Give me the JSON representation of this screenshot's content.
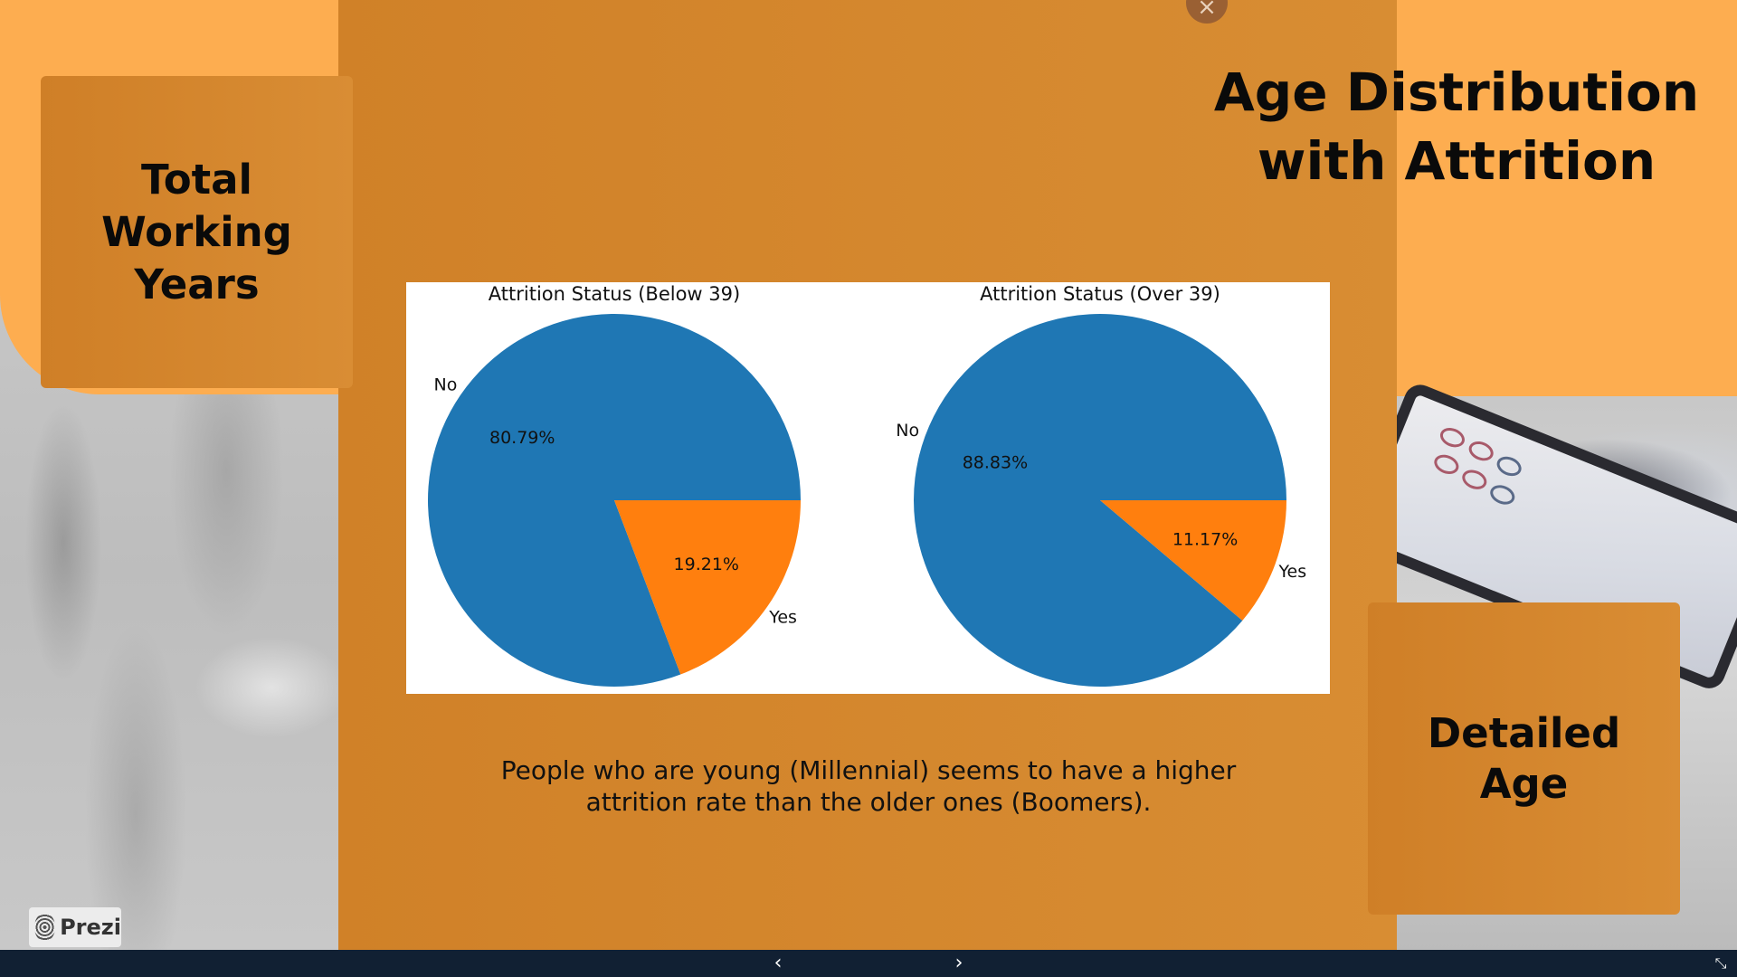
{
  "slide": {
    "title": "Age Distribution with Attrition",
    "left_card": "Total Working Years",
    "right_card": "Detailed Age",
    "caption": "People who are young (Millennial) seems to have a higher attrition rate than the older ones (Boomers)."
  },
  "controls": {
    "close_glyph": "×",
    "prev_glyph": "‹",
    "next_glyph": "›",
    "fullscreen_glyph": "⤡"
  },
  "branding": {
    "logo_text": "Prezi"
  },
  "colors": {
    "panel": "#d4862d",
    "accent_orange": "#fdad50",
    "pie_no": "#1f77b4",
    "pie_yes": "#ff7f0e",
    "navbar": "#112033"
  },
  "chart_data": [
    {
      "type": "pie",
      "title": "Attrition Status (Below 39)",
      "labels": [
        "No",
        "Yes"
      ],
      "values": [
        80.79,
        19.21
      ],
      "value_labels": [
        "80.79%",
        "19.21%"
      ],
      "colors": [
        "#1f77b4",
        "#ff7f0e"
      ]
    },
    {
      "type": "pie",
      "title": "Attrition Status (Over 39)",
      "labels": [
        "No",
        "Yes"
      ],
      "values": [
        88.83,
        11.17
      ],
      "value_labels": [
        "88.83%",
        "11.17%"
      ],
      "colors": [
        "#1f77b4",
        "#ff7f0e"
      ]
    }
  ]
}
